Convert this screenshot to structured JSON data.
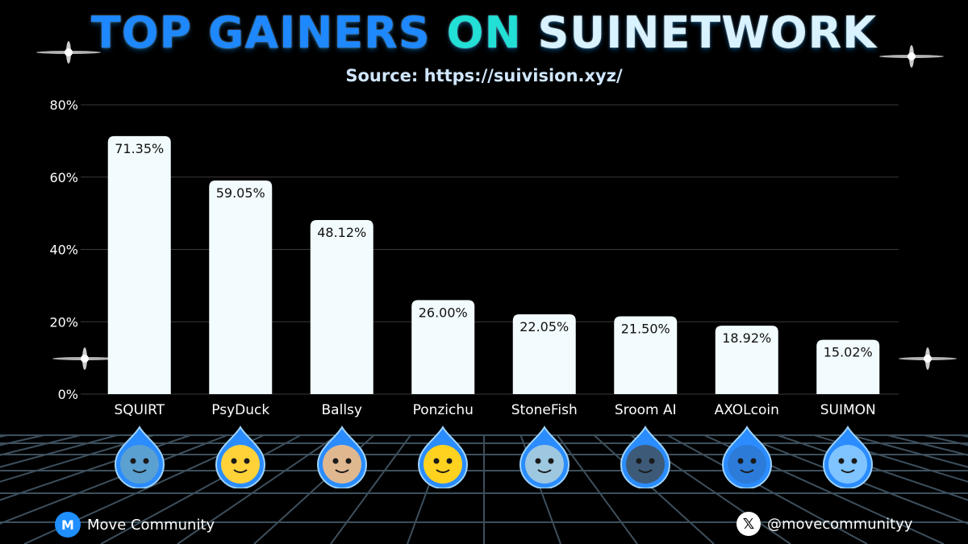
{
  "title": {
    "part1": "TOP GAINERS ",
    "part2": "ON ",
    "part3": "SUINETWORK"
  },
  "subtitle": "Source: https://suivision.xyz/",
  "colors": {
    "title_blue": "#1e88ff",
    "title_teal": "#22e0d6",
    "title_white": "#d8f2ff",
    "subtitle": "#cfe6ff",
    "bar_fill": "#f2fbfd",
    "gridline": "#3a3a3a",
    "floor_grid": "#3d4f5c",
    "avatar_ring": "#2a8cff",
    "brand_blue": "#1f8fff"
  },
  "chart_data": {
    "type": "bar",
    "categories": [
      "SQUIRT",
      "PsyDuck",
      "Ballsy",
      "Ponzichu",
      "StoneFish",
      "Sroom AI",
      "AXOLcoin",
      "SUIMON"
    ],
    "values": [
      71.35,
      59.05,
      48.12,
      26.0,
      22.05,
      21.5,
      18.92,
      15.02
    ],
    "data_labels": [
      "71.35%",
      "59.05%",
      "48.12%",
      "26.00%",
      "22.05%",
      "21.50%",
      "18.92%",
      "15.02%"
    ],
    "yticks": [
      0,
      20,
      40,
      60,
      80
    ],
    "ytick_labels": [
      "0%",
      "20%",
      "40%",
      "60%",
      "80%"
    ],
    "ylim": [
      0,
      80
    ],
    "grid": true,
    "title": "TOP GAINERS ON SUINETWORK",
    "xlabel": "",
    "ylabel": ""
  },
  "avatars": [
    {
      "icon": "squirt-avatar-icon",
      "color": "#5aa0d0"
    },
    {
      "icon": "psyduck-avatar-icon",
      "color": "#ffd23a"
    },
    {
      "icon": "ballsy-avatar-icon",
      "color": "#e0b890"
    },
    {
      "icon": "ponzichu-avatar-icon",
      "color": "#ffd21f"
    },
    {
      "icon": "stonefish-avatar-icon",
      "color": "#9ec7e0"
    },
    {
      "icon": "sroom-ai-avatar-icon",
      "color": "#3d5a78"
    },
    {
      "icon": "axolcoin-avatar-icon",
      "color": "#2c7bd8"
    },
    {
      "icon": "suimon-avatar-icon",
      "color": "#7fc4ff"
    }
  ],
  "footer": {
    "brand_name": "Move Community",
    "brand_logo_letter": "M",
    "x_handle": "@movecommunityy",
    "x_logo": "𝕏"
  }
}
